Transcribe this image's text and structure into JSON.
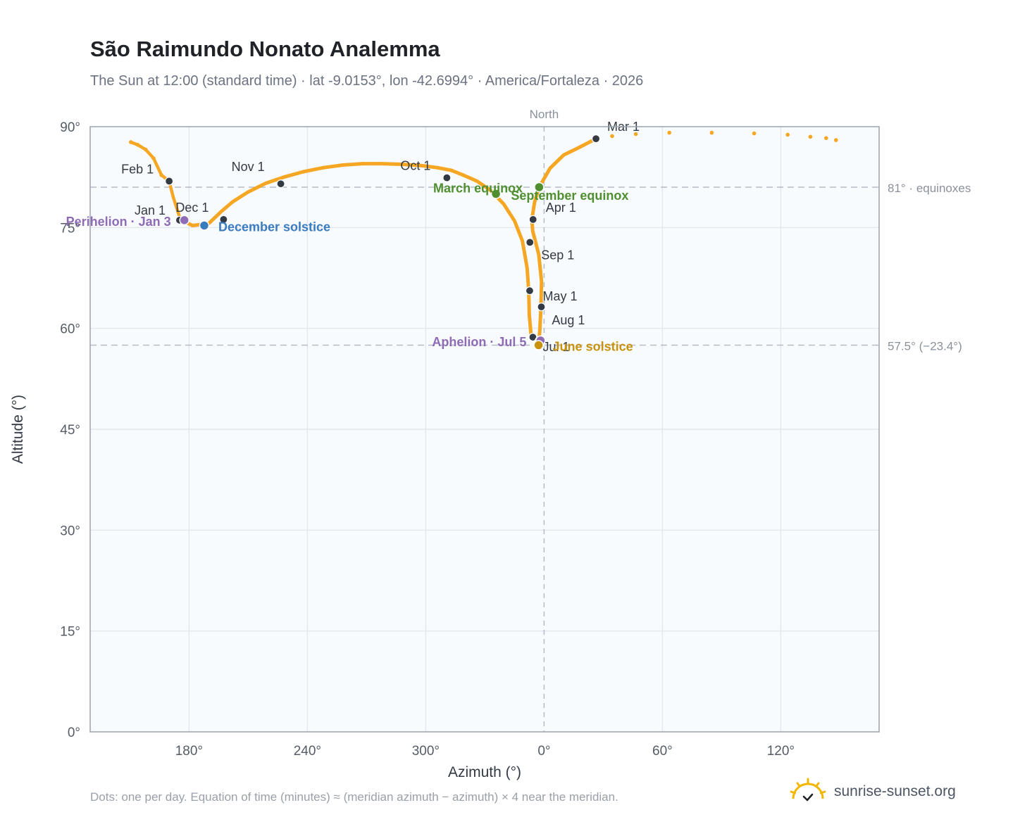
{
  "header": {
    "title": "São Raimundo Nonato Analemma",
    "subtitle": "The Sun at 12:00 (standard time) · lat -9.0153°, lon -42.6994° · America/Fortaleza · 2026"
  },
  "footer": {
    "note": "Dots: one per day. Equation of time (minutes) ≈ (meridian azimuth − azimuth) × 4 near the meridian.",
    "brand": "sunrise-sunset.org"
  },
  "colors": {
    "curve": "#f5a623",
    "month_marker": "#333a44",
    "equinox": "#4f8f2f",
    "december_solstice": "#3a7bbf",
    "june_solstice": "#c8920f",
    "apsis": "#8e6bb5",
    "plot_bg": "#f8fbfe",
    "grid": "#e3e8ee",
    "axis": "#9aa3ad"
  },
  "chart_data": {
    "type": "scatter",
    "xlabel": "Azimuth (°)",
    "ylabel": "Altitude (°)",
    "ylim": [
      0,
      90
    ],
    "x_ticks": [
      180,
      240,
      300,
      0,
      60,
      120
    ],
    "x_tick_labels": [
      "180°",
      "240°",
      "300°",
      "0°",
      "60°",
      "120°"
    ],
    "y_ticks": [
      0,
      15,
      30,
      45,
      60,
      75,
      90
    ],
    "y_tick_labels": [
      "0°",
      "15°",
      "30°",
      "45°",
      "60°",
      "75°",
      "90°"
    ],
    "north_label": "North",
    "reference_lines": [
      {
        "altitude": 81,
        "label": "81° · equinoxes"
      },
      {
        "altitude": 57.5,
        "label": "57.5° (−23.4°)"
      }
    ],
    "path": [
      {
        "az": 175.6,
        "alt": 76.2
      },
      {
        "az": 181.7,
        "alt": 75.3
      },
      {
        "az": 190,
        "alt": 75.6
      },
      {
        "az": 196,
        "alt": 77.3
      },
      {
        "az": 202,
        "alt": 78.8
      },
      {
        "az": 210,
        "alt": 80.3
      },
      {
        "az": 219,
        "alt": 81.6
      },
      {
        "az": 228,
        "alt": 82.5
      },
      {
        "az": 238,
        "alt": 83.3
      },
      {
        "az": 248,
        "alt": 83.9
      },
      {
        "az": 258,
        "alt": 84.3
      },
      {
        "az": 268,
        "alt": 84.5
      },
      {
        "az": 278,
        "alt": 84.5
      },
      {
        "az": 288,
        "alt": 84.4
      },
      {
        "az": 298,
        "alt": 84.2
      },
      {
        "az": 306,
        "alt": 83.9
      },
      {
        "az": 313,
        "alt": 83.5
      },
      {
        "az": 319,
        "alt": 82.8
      },
      {
        "az": 326,
        "alt": 81.9
      },
      {
        "az": 333,
        "alt": 80.5
      },
      {
        "az": 339.5,
        "alt": 78.5
      },
      {
        "az": 345,
        "alt": 76
      },
      {
        "az": 349,
        "alt": 73
      },
      {
        "az": 351.4,
        "alt": 69
      },
      {
        "az": 352.2,
        "alt": 65.6
      },
      {
        "az": 352.5,
        "alt": 62
      },
      {
        "az": 353.5,
        "alt": 58.7
      },
      {
        "az": 356,
        "alt": 58.3
      },
      {
        "az": 357.2,
        "alt": 57.7
      },
      {
        "az": 357.8,
        "alt": 59.5
      },
      {
        "az": 358.4,
        "alt": 63
      },
      {
        "az": 358.7,
        "alt": 67
      },
      {
        "az": 357.3,
        "alt": 71
      },
      {
        "az": 354.2,
        "alt": 74.5
      },
      {
        "az": 353.8,
        "alt": 76.2
      },
      {
        "az": 355.2,
        "alt": 78.8
      },
      {
        "az": 357.5,
        "alt": 81
      },
      {
        "az": 3,
        "alt": 83.8
      },
      {
        "az": 10,
        "alt": 85.8
      },
      {
        "az": 17,
        "alt": 86.8
      },
      {
        "az": 26.3,
        "alt": 88.2
      }
    ],
    "tail": [
      {
        "az": 34.5,
        "alt": 88.6
      },
      {
        "az": 46.5,
        "alt": 88.9
      },
      {
        "az": 63.5,
        "alt": 89.1
      },
      {
        "az": 85,
        "alt": 89.1
      },
      {
        "az": 106.5,
        "alt": 89.0
      },
      {
        "az": 123.5,
        "alt": 88.8
      },
      {
        "az": 135,
        "alt": 88.5
      },
      {
        "az": 143,
        "alt": 88.3
      },
      {
        "az": 148,
        "alt": 88.0
      }
    ],
    "head": [
      {
        "az": 150.5,
        "alt": 87.7
      },
      {
        "az": 154,
        "alt": 87.3
      },
      {
        "az": 158,
        "alt": 86.6
      },
      {
        "az": 162,
        "alt": 85.3
      },
      {
        "az": 166,
        "alt": 82.8
      },
      {
        "az": 169.9,
        "alt": 81.9
      },
      {
        "az": 172,
        "alt": 79.5
      },
      {
        "az": 174.5,
        "alt": 77.2
      },
      {
        "az": 175.6,
        "alt": 76.2
      }
    ],
    "month_markers": [
      {
        "label": "Jan 1",
        "az": 175.2,
        "alt": 76.1
      },
      {
        "label": "Feb 1",
        "az": 169.9,
        "alt": 81.9
      },
      {
        "label": "Mar 1",
        "az": 26.3,
        "alt": 88.2
      },
      {
        "label": "Apr 1",
        "az": 354.4,
        "alt": 76.2
      },
      {
        "label": "May 1",
        "az": 358.6,
        "alt": 63.2
      },
      {
        "label": "Jul 1",
        "az": 354.3,
        "alt": 58.7
      },
      {
        "label": "Aug 1",
        "az": 357.5,
        "alt": 58.2
      },
      {
        "label": "Sep 1",
        "az": 352.8,
        "alt": 72.8
      },
      {
        "label": "Oct 1",
        "az": 310.7,
        "alt": 82.4
      },
      {
        "label": "Nov 1",
        "az": 226.5,
        "alt": 81.5
      },
      {
        "label": "Dec 1",
        "az": 197.5,
        "alt": 76.2
      }
    ],
    "extra_markers": [
      {
        "az": 352.7,
        "alt": 65.6
      }
    ],
    "events": [
      {
        "label": "Perihelion · Jan 3",
        "az": 177.6,
        "alt": 76.1,
        "kind": "apsis"
      },
      {
        "label": "December solstice",
        "az": 187.7,
        "alt": 75.3,
        "kind": "december_solstice"
      },
      {
        "label": "March equinox",
        "az": 335.6,
        "alt": 80.0,
        "kind": "equinox"
      },
      {
        "label": "September equinox",
        "az": 357.5,
        "alt": 81.0,
        "kind": "equinox"
      },
      {
        "label": "Aphelion · Jul 5",
        "az": 358.2,
        "alt": 58.2,
        "kind": "apsis"
      },
      {
        "label": "June solstice",
        "az": 357.2,
        "alt": 57.5,
        "kind": "june_solstice"
      }
    ]
  }
}
